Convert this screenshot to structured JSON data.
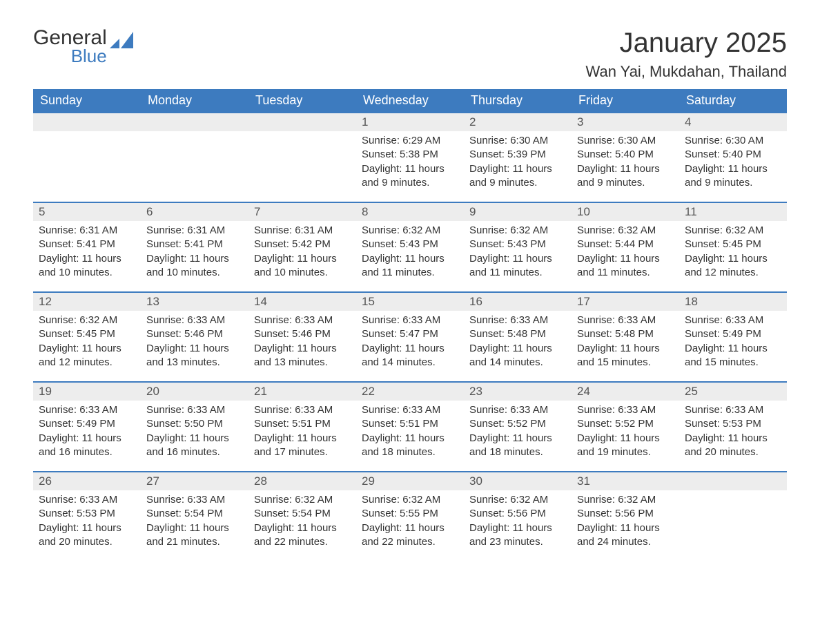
{
  "logo": {
    "general": "General",
    "blue": "Blue"
  },
  "title": "January 2025",
  "location": "Wan Yai, Mukdahan, Thailand",
  "colors": {
    "header_bg": "#3d7bbf",
    "header_text": "#ffffff",
    "daynum_bg": "#ededed",
    "daynum_border": "#3d7bbf",
    "body_text": "#333333",
    "page_bg": "#ffffff"
  },
  "weekdays": [
    "Sunday",
    "Monday",
    "Tuesday",
    "Wednesday",
    "Thursday",
    "Friday",
    "Saturday"
  ],
  "weeks": [
    [
      null,
      null,
      null,
      {
        "d": "1",
        "sr": "6:29 AM",
        "ss": "5:38 PM",
        "dl": "11 hours and 9 minutes."
      },
      {
        "d": "2",
        "sr": "6:30 AM",
        "ss": "5:39 PM",
        "dl": "11 hours and 9 minutes."
      },
      {
        "d": "3",
        "sr": "6:30 AM",
        "ss": "5:40 PM",
        "dl": "11 hours and 9 minutes."
      },
      {
        "d": "4",
        "sr": "6:30 AM",
        "ss": "5:40 PM",
        "dl": "11 hours and 9 minutes."
      }
    ],
    [
      {
        "d": "5",
        "sr": "6:31 AM",
        "ss": "5:41 PM",
        "dl": "11 hours and 10 minutes."
      },
      {
        "d": "6",
        "sr": "6:31 AM",
        "ss": "5:41 PM",
        "dl": "11 hours and 10 minutes."
      },
      {
        "d": "7",
        "sr": "6:31 AM",
        "ss": "5:42 PM",
        "dl": "11 hours and 10 minutes."
      },
      {
        "d": "8",
        "sr": "6:32 AM",
        "ss": "5:43 PM",
        "dl": "11 hours and 11 minutes."
      },
      {
        "d": "9",
        "sr": "6:32 AM",
        "ss": "5:43 PM",
        "dl": "11 hours and 11 minutes."
      },
      {
        "d": "10",
        "sr": "6:32 AM",
        "ss": "5:44 PM",
        "dl": "11 hours and 11 minutes."
      },
      {
        "d": "11",
        "sr": "6:32 AM",
        "ss": "5:45 PM",
        "dl": "11 hours and 12 minutes."
      }
    ],
    [
      {
        "d": "12",
        "sr": "6:32 AM",
        "ss": "5:45 PM",
        "dl": "11 hours and 12 minutes."
      },
      {
        "d": "13",
        "sr": "6:33 AM",
        "ss": "5:46 PM",
        "dl": "11 hours and 13 minutes."
      },
      {
        "d": "14",
        "sr": "6:33 AM",
        "ss": "5:46 PM",
        "dl": "11 hours and 13 minutes."
      },
      {
        "d": "15",
        "sr": "6:33 AM",
        "ss": "5:47 PM",
        "dl": "11 hours and 14 minutes."
      },
      {
        "d": "16",
        "sr": "6:33 AM",
        "ss": "5:48 PM",
        "dl": "11 hours and 14 minutes."
      },
      {
        "d": "17",
        "sr": "6:33 AM",
        "ss": "5:48 PM",
        "dl": "11 hours and 15 minutes."
      },
      {
        "d": "18",
        "sr": "6:33 AM",
        "ss": "5:49 PM",
        "dl": "11 hours and 15 minutes."
      }
    ],
    [
      {
        "d": "19",
        "sr": "6:33 AM",
        "ss": "5:49 PM",
        "dl": "11 hours and 16 minutes."
      },
      {
        "d": "20",
        "sr": "6:33 AM",
        "ss": "5:50 PM",
        "dl": "11 hours and 16 minutes."
      },
      {
        "d": "21",
        "sr": "6:33 AM",
        "ss": "5:51 PM",
        "dl": "11 hours and 17 minutes."
      },
      {
        "d": "22",
        "sr": "6:33 AM",
        "ss": "5:51 PM",
        "dl": "11 hours and 18 minutes."
      },
      {
        "d": "23",
        "sr": "6:33 AM",
        "ss": "5:52 PM",
        "dl": "11 hours and 18 minutes."
      },
      {
        "d": "24",
        "sr": "6:33 AM",
        "ss": "5:52 PM",
        "dl": "11 hours and 19 minutes."
      },
      {
        "d": "25",
        "sr": "6:33 AM",
        "ss": "5:53 PM",
        "dl": "11 hours and 20 minutes."
      }
    ],
    [
      {
        "d": "26",
        "sr": "6:33 AM",
        "ss": "5:53 PM",
        "dl": "11 hours and 20 minutes."
      },
      {
        "d": "27",
        "sr": "6:33 AM",
        "ss": "5:54 PM",
        "dl": "11 hours and 21 minutes."
      },
      {
        "d": "28",
        "sr": "6:32 AM",
        "ss": "5:54 PM",
        "dl": "11 hours and 22 minutes."
      },
      {
        "d": "29",
        "sr": "6:32 AM",
        "ss": "5:55 PM",
        "dl": "11 hours and 22 minutes."
      },
      {
        "d": "30",
        "sr": "6:32 AM",
        "ss": "5:56 PM",
        "dl": "11 hours and 23 minutes."
      },
      {
        "d": "31",
        "sr": "6:32 AM",
        "ss": "5:56 PM",
        "dl": "11 hours and 24 minutes."
      },
      null
    ]
  ],
  "labels": {
    "sunrise": "Sunrise:",
    "sunset": "Sunset:",
    "daylight": "Daylight:"
  }
}
